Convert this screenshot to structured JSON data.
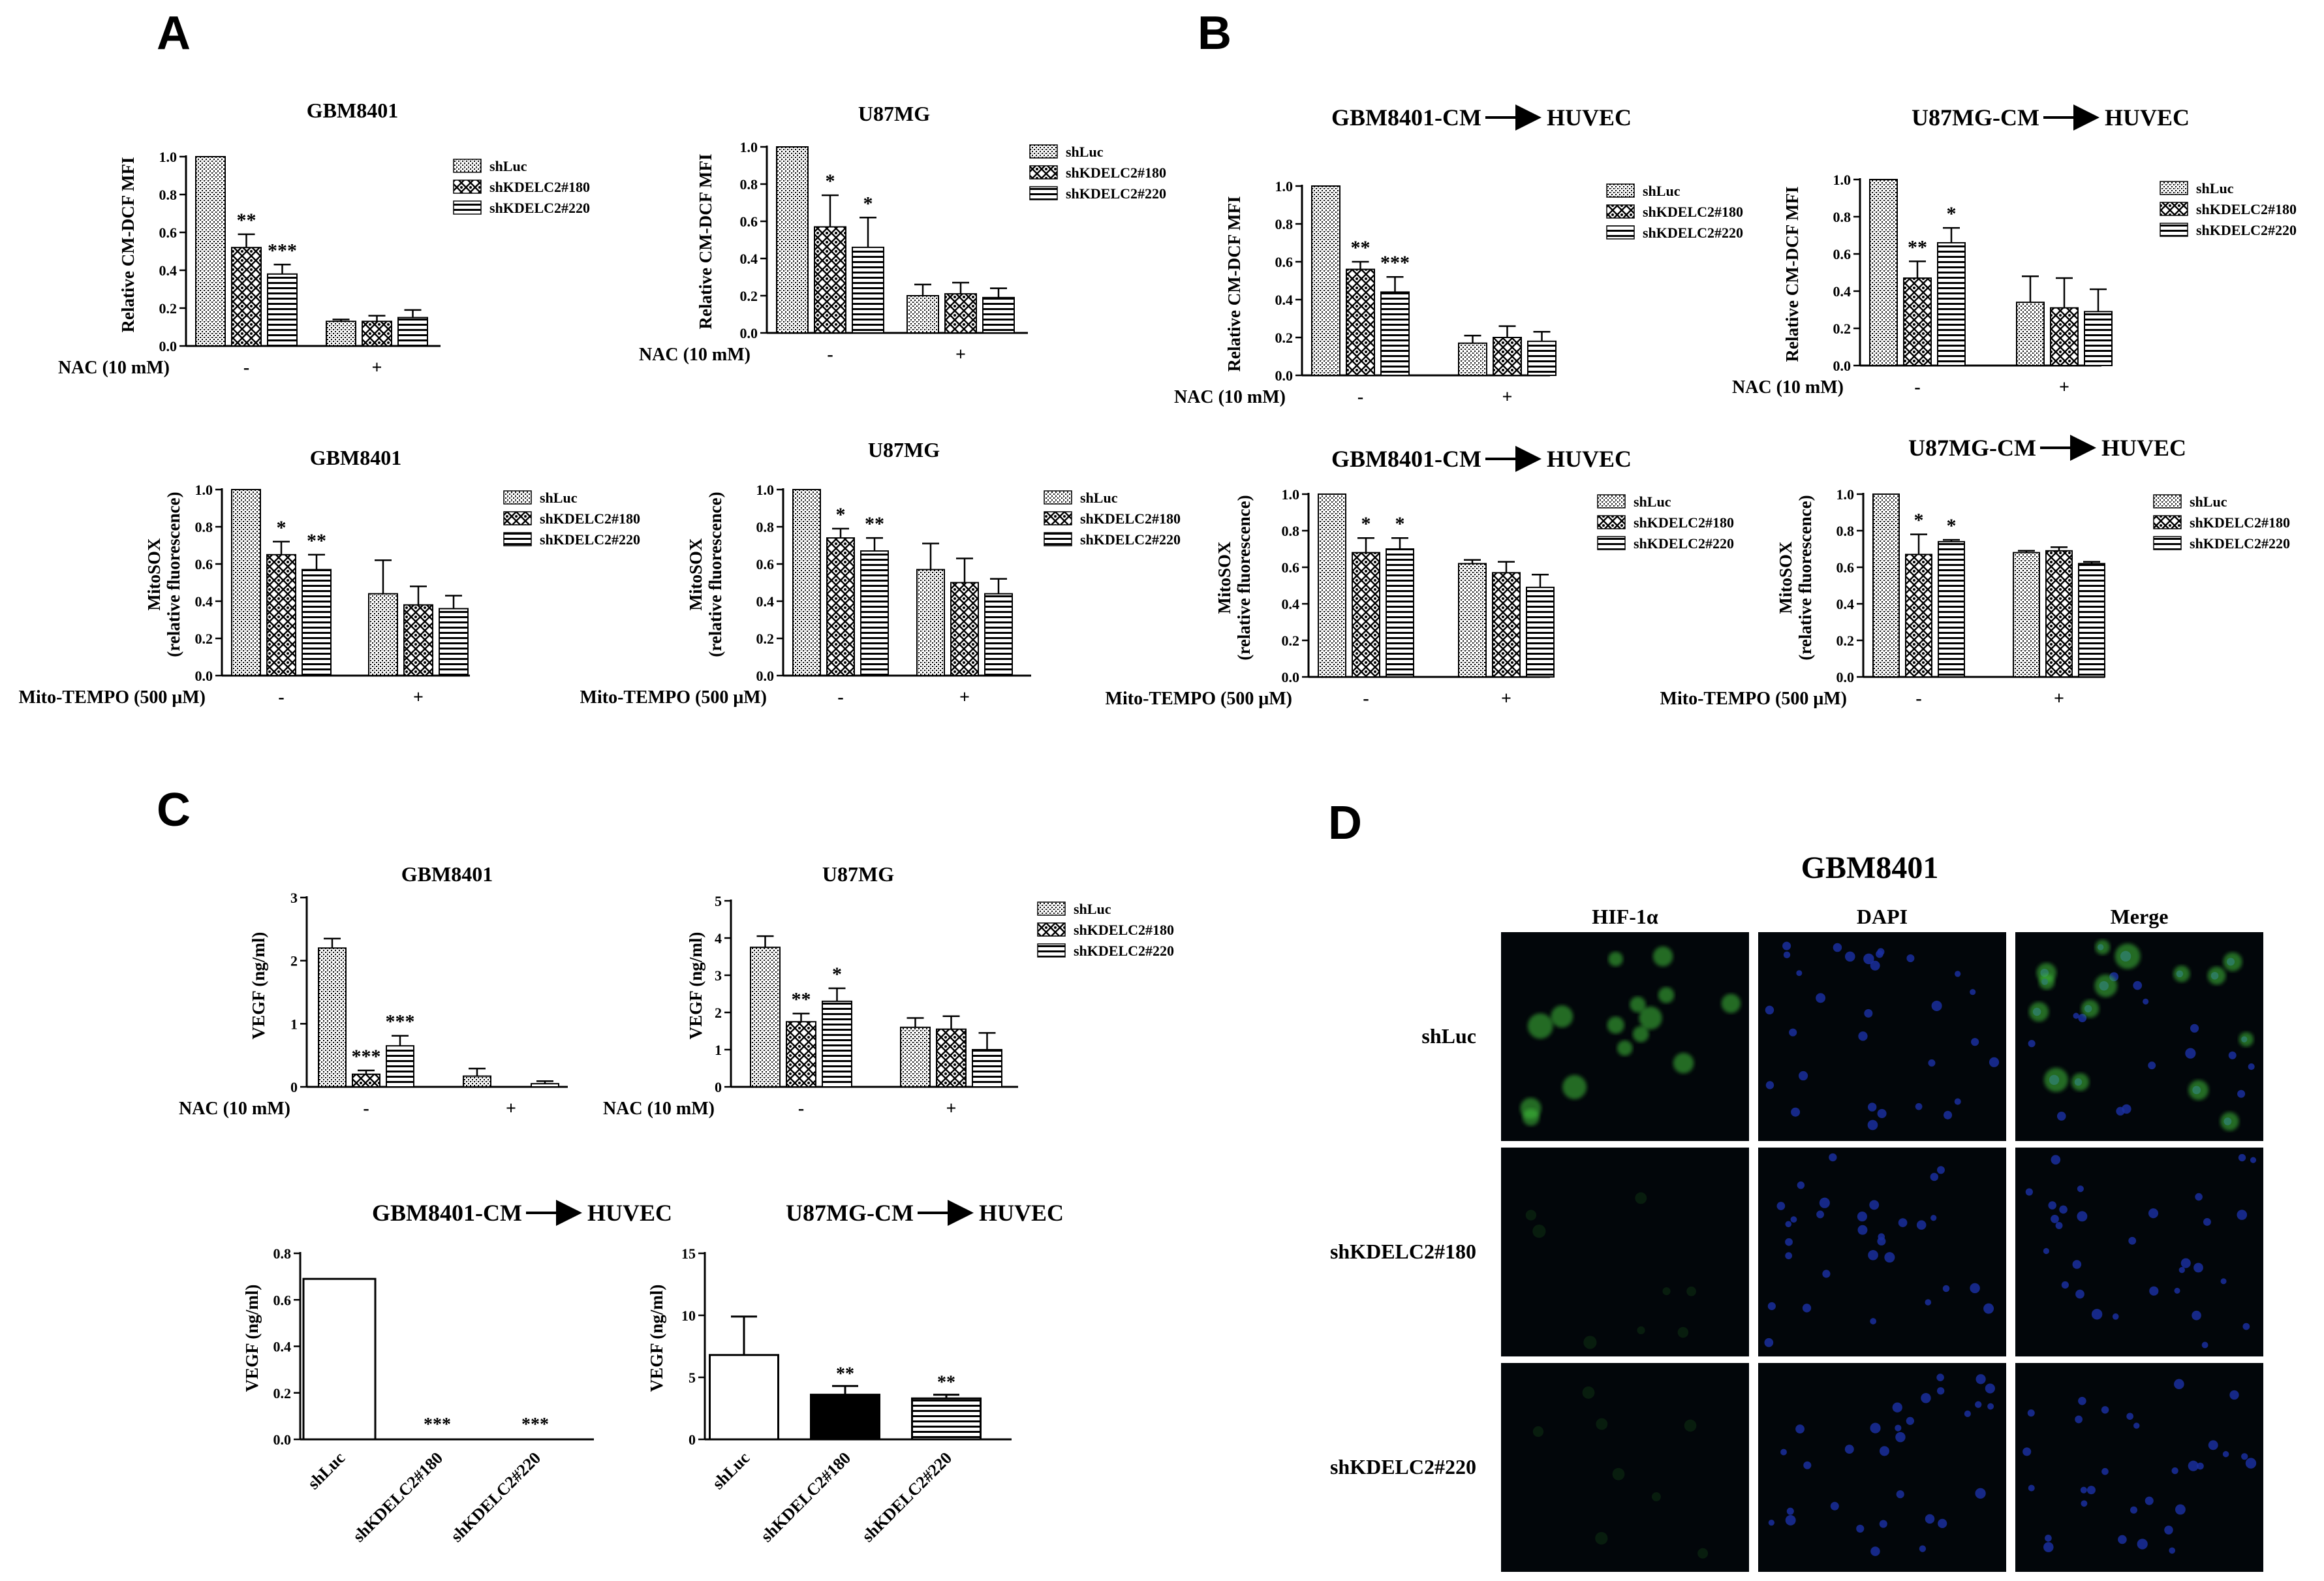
{
  "panels": {
    "A": "A",
    "B": "B",
    "C": "C",
    "D": "D"
  },
  "chart_data": [
    {
      "id": "A1",
      "panel": "A",
      "type": "bar",
      "title": "GBM8401",
      "ylabel": "Relative CM-DCF MFI",
      "treatment_label": "NAC (10 mM)",
      "groups": [
        "-",
        "+"
      ],
      "ylim": [
        0,
        1.0
      ],
      "yticks": [
        "0.0",
        "0.2",
        "0.4",
        "0.6",
        "0.8",
        "1.0"
      ],
      "ytick_values": [
        0,
        0.2,
        0.4,
        0.6,
        0.8,
        1.0
      ],
      "series": [
        {
          "name": "shLuc",
          "pattern": "dense",
          "values": [
            1.0,
            0.13
          ],
          "errors": [
            0,
            0.01
          ]
        },
        {
          "name": "shKDELC2#180",
          "pattern": "check",
          "values": [
            0.52,
            0.13
          ],
          "errors": [
            0.07,
            0.03
          ]
        },
        {
          "name": "shKDELC2#220",
          "pattern": "hstripe",
          "values": [
            0.38,
            0.15
          ],
          "errors": [
            0.05,
            0.04
          ]
        }
      ],
      "sig": [
        [
          [
            ""
          ],
          [
            "**"
          ],
          [
            "***"
          ]
        ],
        [
          [
            ""
          ],
          [
            ""
          ],
          [
            ""
          ]
        ]
      ]
    },
    {
      "id": "A2",
      "panel": "A",
      "type": "bar",
      "title": "U87MG",
      "ylabel": "Relative CM-DCF MFI",
      "treatment_label": "NAC (10 mM)",
      "groups": [
        "-",
        "+"
      ],
      "ylim": [
        0,
        1.0
      ],
      "yticks": [
        "0.0",
        "0.2",
        "0.4",
        "0.6",
        "0.8",
        "1.0"
      ],
      "ytick_values": [
        0,
        0.2,
        0.4,
        0.6,
        0.8,
        1.0
      ],
      "series": [
        {
          "name": "shLuc",
          "pattern": "dense",
          "values": [
            1.0,
            0.2
          ],
          "errors": [
            0,
            0.06
          ]
        },
        {
          "name": "shKDELC2#180",
          "pattern": "check",
          "values": [
            0.57,
            0.21
          ],
          "errors": [
            0.17,
            0.06
          ]
        },
        {
          "name": "shKDELC2#220",
          "pattern": "hstripe",
          "values": [
            0.46,
            0.19
          ],
          "errors": [
            0.16,
            0.05
          ]
        }
      ],
      "sig": [
        [
          [
            ""
          ],
          [
            "*"
          ],
          [
            "*"
          ]
        ],
        [
          [
            ""
          ],
          [
            ""
          ],
          [
            ""
          ]
        ]
      ]
    },
    {
      "id": "B1",
      "panel": "B",
      "type": "bar",
      "title": "GBM8401-CM",
      "title_suffix": "HUVEC",
      "ylabel": "Relative CM-DCF MFI",
      "treatment_label": "NAC (10 mM)",
      "groups": [
        "-",
        "+"
      ],
      "ylim": [
        0,
        1.0
      ],
      "yticks": [
        "0.0",
        "0.2",
        "0.4",
        "0.6",
        "0.8",
        "1.0"
      ],
      "ytick_values": [
        0,
        0.2,
        0.4,
        0.6,
        0.8,
        1.0
      ],
      "series": [
        {
          "name": "shLuc",
          "pattern": "dense",
          "values": [
            1.0,
            0.17
          ],
          "errors": [
            0,
            0.04
          ]
        },
        {
          "name": "shKDELC2#180",
          "pattern": "check",
          "values": [
            0.56,
            0.2
          ],
          "errors": [
            0.04,
            0.06
          ]
        },
        {
          "name": "shKDELC2#220",
          "pattern": "hstripe",
          "values": [
            0.44,
            0.18
          ],
          "errors": [
            0.08,
            0.05
          ]
        }
      ],
      "sig": [
        [
          [
            ""
          ],
          [
            "**"
          ],
          [
            "***"
          ]
        ],
        [
          [
            ""
          ],
          [
            ""
          ],
          [
            ""
          ]
        ]
      ]
    },
    {
      "id": "B2",
      "panel": "B",
      "type": "bar",
      "title": "U87MG-CM",
      "title_suffix": "HUVEC",
      "ylabel": "Relative CM-DCF MFI",
      "treatment_label": "NAC (10 mM)",
      "groups": [
        "-",
        "+"
      ],
      "ylim": [
        0,
        1.0
      ],
      "yticks": [
        "0.0",
        "0.2",
        "0.4",
        "0.6",
        "0.8",
        "1.0"
      ],
      "ytick_values": [
        0,
        0.2,
        0.4,
        0.6,
        0.8,
        1.0
      ],
      "series": [
        {
          "name": "shLuc",
          "pattern": "dense",
          "values": [
            1.0,
            0.34
          ],
          "errors": [
            0,
            0.14
          ]
        },
        {
          "name": "shKDELC2#180",
          "pattern": "check",
          "values": [
            0.47,
            0.31
          ],
          "errors": [
            0.09,
            0.16
          ]
        },
        {
          "name": "shKDELC2#220",
          "pattern": "hstripe",
          "values": [
            0.66,
            0.29
          ],
          "errors": [
            0.08,
            0.12
          ]
        }
      ],
      "sig": [
        [
          [
            ""
          ],
          [
            "**"
          ],
          [
            "*"
          ]
        ],
        [
          [
            ""
          ],
          [
            ""
          ],
          [
            ""
          ]
        ]
      ]
    },
    {
      "id": "A3",
      "panel": "A",
      "type": "bar",
      "title": "GBM8401",
      "ylabel": "MitoSOX",
      "ylabel2": "(relative fluorescence)",
      "treatment_label": "Mito-TEMPO (500 μM)",
      "groups": [
        "-",
        "+"
      ],
      "ylim": [
        0,
        1.0
      ],
      "yticks": [
        "0.0",
        "0.2",
        "0.4",
        "0.6",
        "0.8",
        "1.0"
      ],
      "ytick_values": [
        0,
        0.2,
        0.4,
        0.6,
        0.8,
        1.0
      ],
      "series": [
        {
          "name": "shLuc",
          "pattern": "dense",
          "values": [
            1.0,
            0.44
          ],
          "errors": [
            0,
            0.18
          ]
        },
        {
          "name": "shKDELC2#180",
          "pattern": "check",
          "values": [
            0.65,
            0.38
          ],
          "errors": [
            0.07,
            0.1
          ]
        },
        {
          "name": "shKDELC2#220",
          "pattern": "hstripe",
          "values": [
            0.57,
            0.36
          ],
          "errors": [
            0.08,
            0.07
          ]
        }
      ],
      "sig": [
        [
          [
            ""
          ],
          [
            "*"
          ],
          [
            "**"
          ]
        ],
        [
          [
            ""
          ],
          [
            ""
          ],
          [
            ""
          ]
        ]
      ]
    },
    {
      "id": "A4",
      "panel": "A",
      "type": "bar",
      "title": "U87MG",
      "ylabel": "MitoSOX",
      "ylabel2": "(relative fluorescence)",
      "treatment_label": "Mito-TEMPO (500 μM)",
      "groups": [
        "-",
        "+"
      ],
      "ylim": [
        0,
        1.0
      ],
      "yticks": [
        "0.0",
        "0.2",
        "0.4",
        "0.6",
        "0.8",
        "1.0"
      ],
      "ytick_values": [
        0,
        0.2,
        0.4,
        0.6,
        0.8,
        1.0
      ],
      "series": [
        {
          "name": "shLuc",
          "pattern": "dense",
          "values": [
            1.0,
            0.57
          ],
          "errors": [
            0,
            0.14
          ]
        },
        {
          "name": "shKDELC2#180",
          "pattern": "check",
          "values": [
            0.74,
            0.5
          ],
          "errors": [
            0.05,
            0.13
          ]
        },
        {
          "name": "shKDELC2#220",
          "pattern": "hstripe",
          "values": [
            0.67,
            0.44
          ],
          "errors": [
            0.07,
            0.08
          ]
        }
      ],
      "sig": [
        [
          [
            ""
          ],
          [
            "*"
          ],
          [
            "**"
          ]
        ],
        [
          [
            ""
          ],
          [
            ""
          ],
          [
            ""
          ]
        ]
      ]
    },
    {
      "id": "B3",
      "panel": "B",
      "type": "bar",
      "title": "GBM8401-CM",
      "title_suffix": "HUVEC",
      "ylabel": "MitoSOX",
      "ylabel2": "(relative fluorescence)",
      "treatment_label": "Mito-TEMPO (500 μM)",
      "groups": [
        "-",
        "+"
      ],
      "ylim": [
        0,
        1.0
      ],
      "yticks": [
        "0.0",
        "0.2",
        "0.4",
        "0.6",
        "0.8",
        "1.0"
      ],
      "ytick_values": [
        0,
        0.2,
        0.4,
        0.6,
        0.8,
        1.0
      ],
      "series": [
        {
          "name": "shLuc",
          "pattern": "dense",
          "values": [
            1.0,
            0.62
          ],
          "errors": [
            0,
            0.02
          ]
        },
        {
          "name": "shKDELC2#180",
          "pattern": "check",
          "values": [
            0.68,
            0.57
          ],
          "errors": [
            0.08,
            0.06
          ]
        },
        {
          "name": "shKDELC2#220",
          "pattern": "hstripe",
          "values": [
            0.7,
            0.49
          ],
          "errors": [
            0.06,
            0.07
          ]
        }
      ],
      "sig": [
        [
          [
            ""
          ],
          [
            "*"
          ],
          [
            "*"
          ]
        ],
        [
          [
            ""
          ],
          [
            ""
          ],
          [
            ""
          ]
        ]
      ]
    },
    {
      "id": "B4",
      "panel": "B",
      "type": "bar",
      "title": "U87MG-CM",
      "title_suffix": "HUVEC",
      "ylabel": "MitoSOX",
      "ylabel2": "(relative fluorescence)",
      "treatment_label": "Mito-TEMPO (500 μM)",
      "groups": [
        "-",
        "+"
      ],
      "ylim": [
        0,
        1.0
      ],
      "yticks": [
        "0.0",
        "0.2",
        "0.4",
        "0.6",
        "0.8",
        "1.0"
      ],
      "ytick_values": [
        0,
        0.2,
        0.4,
        0.6,
        0.8,
        1.0
      ],
      "series": [
        {
          "name": "shLuc",
          "pattern": "dense",
          "values": [
            1.0,
            0.68
          ],
          "errors": [
            0,
            0.01
          ]
        },
        {
          "name": "shKDELC2#180",
          "pattern": "check",
          "values": [
            0.67,
            0.69
          ],
          "errors": [
            0.11,
            0.02
          ]
        },
        {
          "name": "shKDELC2#220",
          "pattern": "hstripe",
          "values": [
            0.74,
            0.62
          ],
          "errors": [
            0.01,
            0.01
          ]
        }
      ],
      "sig": [
        [
          [
            ""
          ],
          [
            "*"
          ],
          [
            "*"
          ]
        ],
        [
          [
            ""
          ],
          [
            ""
          ],
          [
            ""
          ]
        ]
      ]
    },
    {
      "id": "C1",
      "panel": "C",
      "type": "bar",
      "title": "GBM8401",
      "ylabel": "VEGF (ng/ml)",
      "treatment_label": "NAC (10 mM)",
      "groups": [
        "-",
        "+"
      ],
      "ylim": [
        0,
        3
      ],
      "yticks": [
        "0",
        "1",
        "2",
        "3"
      ],
      "ytick_values": [
        0,
        1,
        2,
        3
      ],
      "series": [
        {
          "name": "shLuc",
          "pattern": "dense",
          "values": [
            2.2,
            0.17
          ],
          "errors": [
            0.15,
            0.12
          ]
        },
        {
          "name": "shKDELC2#180",
          "pattern": "check",
          "values": [
            0.2,
            0.0
          ],
          "errors": [
            0.06,
            0
          ]
        },
        {
          "name": "shKDELC2#220",
          "pattern": "hstripe",
          "values": [
            0.65,
            0.05
          ],
          "errors": [
            0.16,
            0.04
          ]
        }
      ],
      "sig": [
        [
          [
            ""
          ],
          [
            "***"
          ],
          [
            "***"
          ]
        ],
        [
          [
            ""
          ],
          [
            ""
          ],
          [
            ""
          ]
        ]
      ]
    },
    {
      "id": "C2",
      "panel": "C",
      "type": "bar",
      "title": "U87MG",
      "ylabel": "VEGF (ng/ml)",
      "treatment_label": "NAC (10 mM)",
      "groups": [
        "-",
        "+"
      ],
      "ylim": [
        0,
        5
      ],
      "yticks": [
        "0",
        "1",
        "2",
        "3",
        "4",
        "5"
      ],
      "ytick_values": [
        0,
        1,
        2,
        3,
        4,
        5
      ],
      "series": [
        {
          "name": "shLuc",
          "pattern": "dense",
          "values": [
            3.75,
            1.6
          ],
          "errors": [
            0.3,
            0.25
          ]
        },
        {
          "name": "shKDELC2#180",
          "pattern": "check",
          "values": [
            1.75,
            1.55
          ],
          "errors": [
            0.22,
            0.35
          ]
        },
        {
          "name": "shKDELC2#220",
          "pattern": "hstripe",
          "values": [
            2.3,
            1.0
          ],
          "errors": [
            0.35,
            0.45
          ]
        }
      ],
      "sig": [
        [
          [
            ""
          ],
          [
            "**"
          ],
          [
            "*"
          ]
        ],
        [
          [
            ""
          ],
          [
            ""
          ],
          [
            ""
          ]
        ]
      ]
    },
    {
      "id": "C3",
      "panel": "C",
      "type": "bar",
      "mode": "single",
      "title": "GBM8401-CM",
      "title_suffix": "HUVEC",
      "ylabel": "VEGF (ng/ml)",
      "categories": [
        "shLuc",
        "shKDELC2#180",
        "shKDELC2#220"
      ],
      "ylim": [
        0,
        0.8
      ],
      "yticks": [
        "0.0",
        "0.2",
        "0.4",
        "0.6",
        "0.8"
      ],
      "ytick_values": [
        0,
        0.2,
        0.4,
        0.6,
        0.8
      ],
      "values": [
        0.69,
        0.0,
        0.0
      ],
      "errors": [
        0,
        0,
        0
      ],
      "patterns": [
        "white",
        "white",
        "white"
      ],
      "sig": [
        "",
        "***",
        "***"
      ]
    },
    {
      "id": "C4",
      "panel": "C",
      "type": "bar",
      "mode": "single",
      "title": "U87MG-CM",
      "title_suffix": "HUVEC",
      "ylabel": "VEGF (ng/ml)",
      "categories": [
        "shLuc",
        "shKDELC2#180",
        "shKDELC2#220"
      ],
      "ylim": [
        0,
        15
      ],
      "yticks": [
        "0",
        "5",
        "10",
        "15"
      ],
      "ytick_values": [
        0,
        5,
        10,
        15
      ],
      "values": [
        6.8,
        3.6,
        3.3
      ],
      "errors": [
        3.1,
        0.7,
        0.3
      ],
      "patterns": [
        "white",
        "black",
        "hstripe"
      ],
      "sig": [
        "",
        "**",
        "**"
      ]
    }
  ],
  "panel_d": {
    "title": "GBM8401",
    "columns": [
      "HIF-1α",
      "DAPI",
      "Merge"
    ],
    "rows": [
      "shLuc",
      "shKDELC2#180",
      "shKDELC2#220"
    ]
  }
}
